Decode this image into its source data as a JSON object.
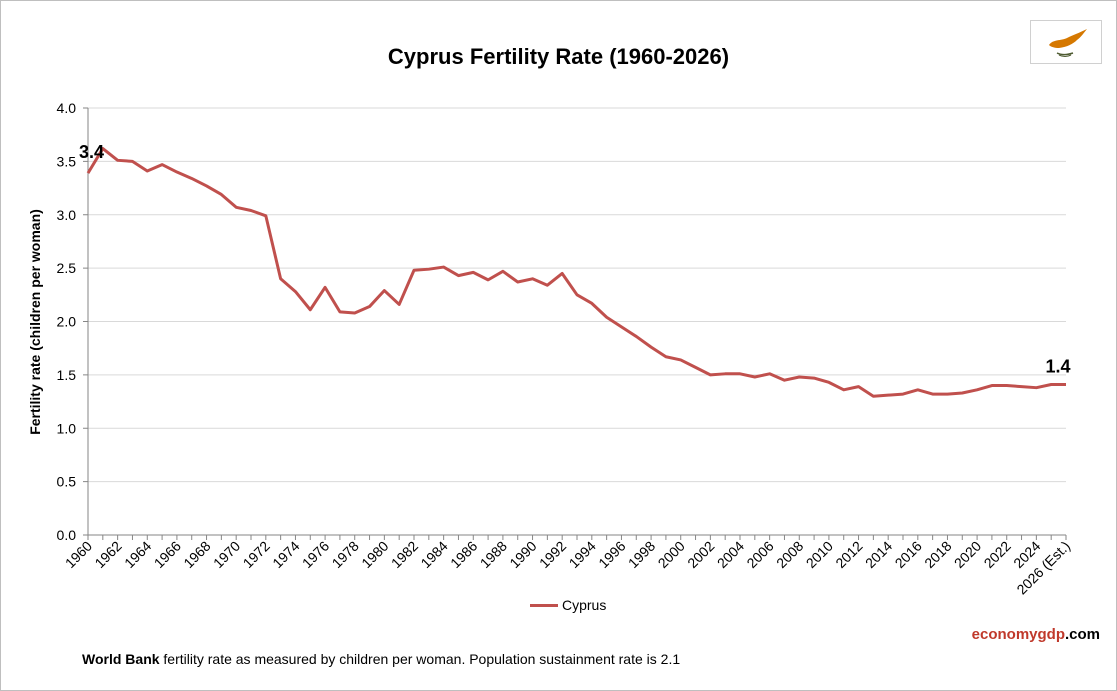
{
  "chart_data": {
    "type": "line",
    "title": "Cyprus Fertility Rate (1960-2026)",
    "ylabel": "Fertility rate (children per woman)",
    "xlabel": "",
    "ylim": [
      0,
      4
    ],
    "yticks": [
      "0.0",
      "0.5",
      "1.0",
      "1.5",
      "2.0",
      "2.5",
      "3.0",
      "3.5",
      "4.0"
    ],
    "x": [
      "1960",
      "1961",
      "1962",
      "1963",
      "1964",
      "1965",
      "1966",
      "1967",
      "1968",
      "1969",
      "1970",
      "1971",
      "1972",
      "1973",
      "1974",
      "1975",
      "1976",
      "1977",
      "1978",
      "1979",
      "1980",
      "1981",
      "1982",
      "1983",
      "1984",
      "1985",
      "1986",
      "1987",
      "1988",
      "1989",
      "1990",
      "1991",
      "1992",
      "1993",
      "1994",
      "1995",
      "1996",
      "1997",
      "1998",
      "1999",
      "2000",
      "2001",
      "2002",
      "2003",
      "2004",
      "2005",
      "2006",
      "2007",
      "2008",
      "2009",
      "2010",
      "2011",
      "2012",
      "2013",
      "2014",
      "2015",
      "2016",
      "2017",
      "2018",
      "2019",
      "2020",
      "2021",
      "2022",
      "2023",
      "2024",
      "2025",
      "2026 (Est.)"
    ],
    "xtick_labels": [
      "1960",
      "1962",
      "1964",
      "1966",
      "1968",
      "1970",
      "1972",
      "1974",
      "1976",
      "1978",
      "1980",
      "1982",
      "1984",
      "1986",
      "1988",
      "1990",
      "1992",
      "1994",
      "1996",
      "1998",
      "2000",
      "2002",
      "2004",
      "2006",
      "2008",
      "2010",
      "2012",
      "2014",
      "2016",
      "2018",
      "2020",
      "2022",
      "2024",
      "2026 (Est.)"
    ],
    "series": [
      {
        "name": "Cyprus",
        "color": "#c0504d",
        "values": [
          3.39,
          3.62,
          3.51,
          3.5,
          3.41,
          3.47,
          3.4,
          3.34,
          3.27,
          3.19,
          3.07,
          3.04,
          2.99,
          2.4,
          2.28,
          2.11,
          2.32,
          2.09,
          2.08,
          2.14,
          2.29,
          2.16,
          2.48,
          2.49,
          2.51,
          2.43,
          2.46,
          2.39,
          2.47,
          2.37,
          2.4,
          2.34,
          2.45,
          2.25,
          2.17,
          2.04,
          1.95,
          1.86,
          1.76,
          1.67,
          1.64,
          1.57,
          1.5,
          1.51,
          1.51,
          1.48,
          1.51,
          1.45,
          1.48,
          1.47,
          1.43,
          1.36,
          1.39,
          1.3,
          1.31,
          1.32,
          1.36,
          1.32,
          1.32,
          1.33,
          1.36,
          1.4,
          1.4,
          1.39,
          1.38,
          1.41,
          1.41
        ]
      }
    ],
    "annotations": [
      {
        "text": "3.4",
        "x": "1960"
      },
      {
        "text": "1.4",
        "x": "2026 (Est.)"
      }
    ],
    "grid": true,
    "legend_position": "bottom"
  },
  "footnote": {
    "bold": "World Bank",
    "text": " fertility rate as measured by children per woman.  Population sustainment rate is 2.1"
  },
  "brand": {
    "part1": "economygdp",
    "part2": ".com"
  },
  "flag_icon": "cyprus-flag-icon"
}
